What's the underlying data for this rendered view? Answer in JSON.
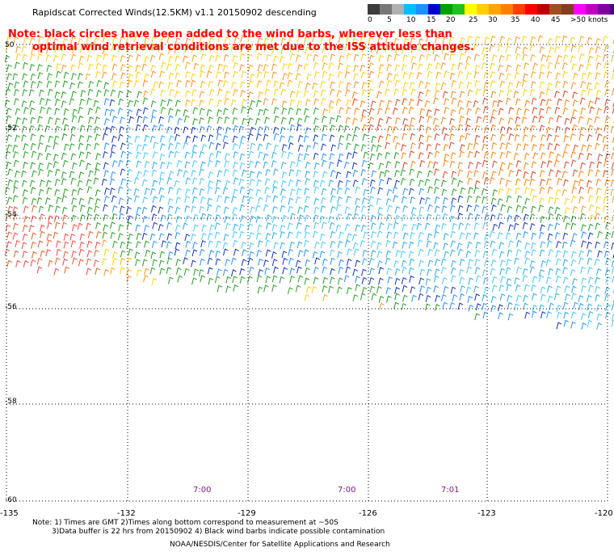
{
  "header": {
    "title": "Rapidscat Corrected Winds(12.5KM) v1.1 20150902 descending",
    "note_line1": "Note: black circles have been added to the wind barbs, wherever less than",
    "note_line2": "optimal wind retrieval conditions are met due to the ISS attitude changes."
  },
  "legend": {
    "labels": [
      "0",
      "5",
      "10",
      "15",
      "20",
      "25",
      "30",
      "35",
      "40",
      "45",
      ">50 knots"
    ],
    "colors": [
      "#3c3c3c",
      "#777777",
      "#b0b0b0",
      "#00bfff",
      "#1e90ff",
      "#0000cd",
      "#00a000",
      "#20c020",
      "#ffff00",
      "#ffd000",
      "#ffa500",
      "#ff8000",
      "#ff4000",
      "#ff0000",
      "#c00000",
      "#a05020",
      "#804020",
      "#ff00ff",
      "#c000c0",
      "#8000a0",
      "#4b0082"
    ]
  },
  "map": {
    "lat_labels": [
      "50",
      "-52",
      "-54",
      "-56",
      "-58",
      "-60"
    ],
    "lon_labels": [
      "-135",
      "-132",
      "-129",
      "-126",
      "-123",
      "-120"
    ],
    "time_labels": [
      "7:00",
      "7:00",
      "7:01"
    ]
  },
  "footer": {
    "line1": "Note: 1) Times are GMT 2)Times along bottom correspond to measurement at ~50S",
    "line2": "3)Data buffer is 22 hrs from 20150902 4) Black wind barbs indicate possible contamination",
    "line3": "NOAA/NESDIS/Center for Satellite Applications and Research"
  }
}
